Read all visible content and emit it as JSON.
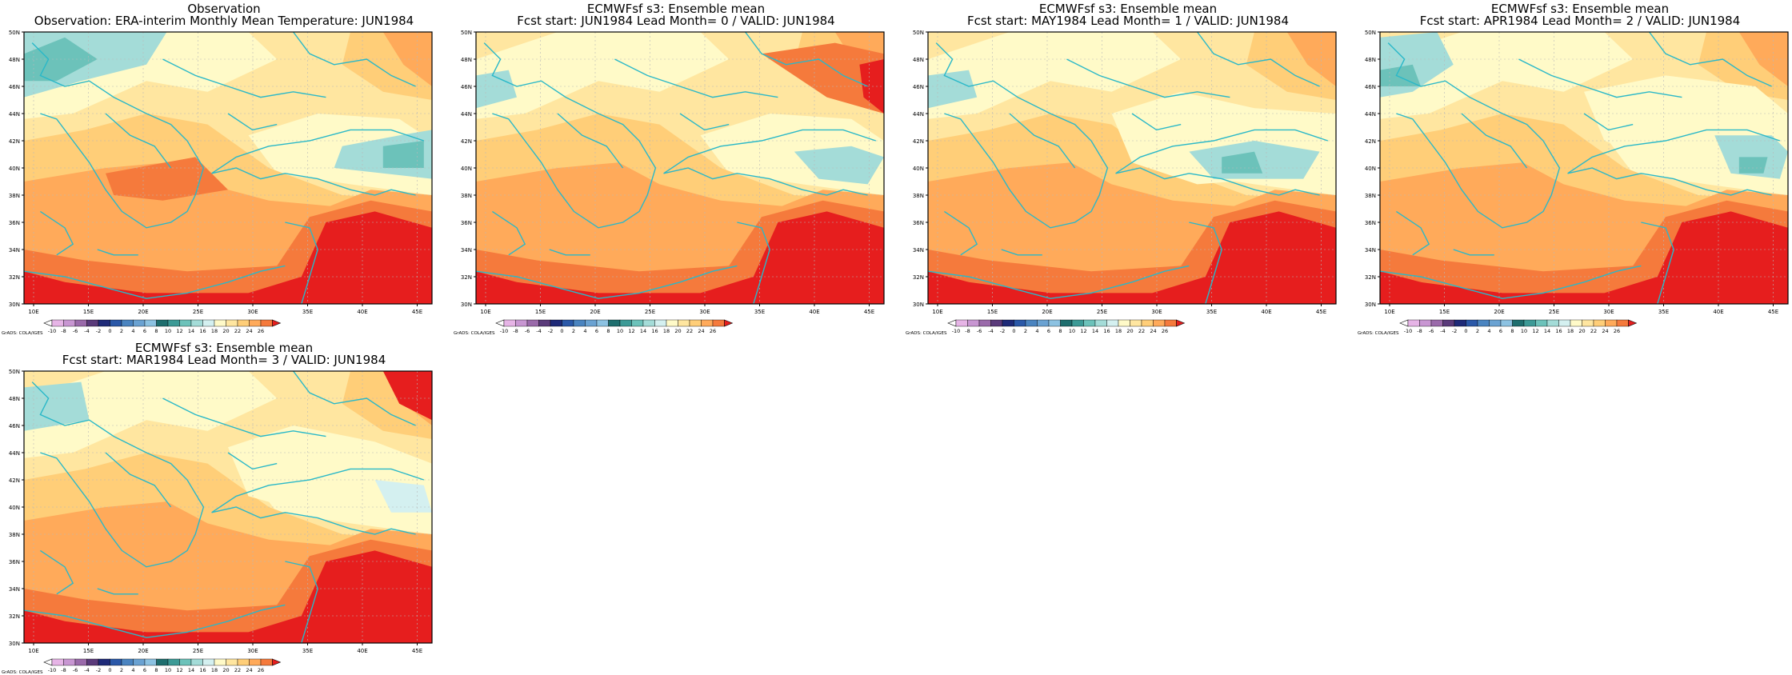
{
  "panels": [
    {
      "title1": "Observation",
      "title2": "Observation: ERA-interim Monthly Mean Temperature: JUN1984"
    },
    {
      "title1": "ECMWFsf s3: Ensemble mean",
      "title2": "Fcst start: JUN1984   Lead Month= 0 / VALID: JUN1984"
    },
    {
      "title1": "ECMWFsf s3: Ensemble mean",
      "title2": "Fcst start: MAY1984   Lead Month= 1 / VALID: JUN1984"
    },
    {
      "title1": "ECMWFsf s3: Ensemble mean",
      "title2": "Fcst start: APR1984   Lead Month= 2 / VALID: JUN1984"
    },
    {
      "title1": "ECMWFsf s3: Ensemble mean",
      "title2": "Fcst start: MAR1984   Lead Month= 3 / VALID: JUN1984"
    }
  ],
  "lat_labels": [
    "30N",
    "32N",
    "34N",
    "36N",
    "38N",
    "40N",
    "42N",
    "44N",
    "46N",
    "48N",
    "50N"
  ],
  "lon_labels": [
    "10E",
    "15E",
    "20E",
    "25E",
    "30E",
    "35E",
    "40E",
    "45E"
  ],
  "colorbar": {
    "credit": "GrADS: COLA/IGES",
    "labels": [
      "-10",
      "-8",
      "-6",
      "-4",
      "-2",
      "0",
      "2",
      "4",
      "6",
      "8",
      "10",
      "12",
      "14",
      "16",
      "18",
      "20",
      "22",
      "24",
      "26"
    ],
    "colors": [
      "#ffffff",
      "#e6b4e6",
      "#c896d2",
      "#9a6aaa",
      "#5a3a7a",
      "#1e2a78",
      "#2a58a8",
      "#4a84c0",
      "#6aa2d2",
      "#8cc2e2",
      "#1e6e6e",
      "#3c9a96",
      "#6cc2ba",
      "#a4dcd8",
      "#d4f0f0",
      "#fffac8",
      "#ffe6a0",
      "#ffce78",
      "#ffaa5a",
      "#f57a3c",
      "#e61e1e"
    ]
  },
  "field_colors": {
    "teal": "#6cc2ba",
    "cyan": "#a4dcd8",
    "paleCyan": "#d4f0f0",
    "cream": "#fffac8",
    "light": "#ffe6a0",
    "mid": "#ffce78",
    "orange": "#ffaa5a",
    "deep": "#f57a3c",
    "red": "#e61e1e",
    "coast": "#2ab8c8"
  }
}
